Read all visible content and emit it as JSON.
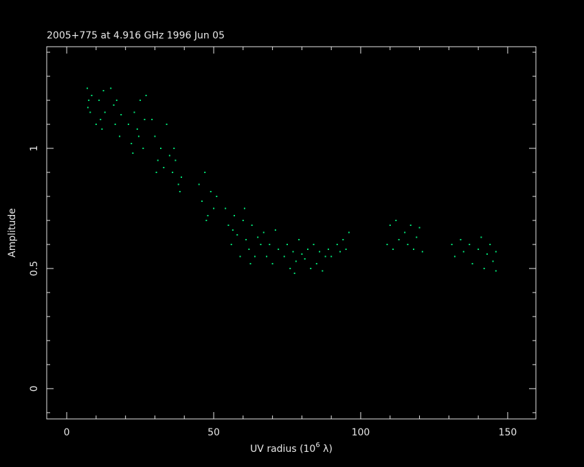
{
  "chart_data": {
    "type": "scatter",
    "title": "2005+775 at 4.916 GHz 1996 Jun 05",
    "xlabel": "UV radius  (10",
    "xlabel_exponent": "6",
    "xlabel_unit": " λ)",
    "ylabel": "Amplitude",
    "xlim": [
      -6.8,
      159.6
    ],
    "ylim": [
      -0.126,
      1.423
    ],
    "xticks": [
      0,
      50,
      100,
      150
    ],
    "yticks": [
      0,
      0.5,
      1
    ],
    "xminorticks": [
      10,
      20,
      30,
      40,
      60,
      70,
      80,
      90,
      110,
      120,
      130,
      140
    ],
    "yminorticks": [
      -0.1,
      0.1,
      0.2,
      0.3,
      0.4,
      0.6,
      0.7,
      0.8,
      0.9,
      1.1,
      1.2,
      1.3,
      1.4
    ],
    "color": "#00e878",
    "x": [
      7,
      7.5,
      8,
      8.5,
      7.2,
      10,
      11,
      12,
      12.5,
      13,
      11.5,
      15,
      16,
      16.5,
      17,
      18,
      18.5,
      21,
      22,
      23,
      24,
      25,
      26,
      26.5,
      27,
      24.5,
      22.5,
      29,
      30,
      31,
      32,
      33,
      34,
      35,
      30.5,
      36,
      37,
      38,
      39,
      36.5,
      38.5,
      45,
      46,
      47,
      48,
      49,
      50,
      51,
      47.5,
      54,
      55,
      56,
      57,
      58,
      59,
      60,
      56.5,
      61,
      62,
      63,
      64,
      65,
      66,
      62.5,
      60.5,
      67,
      68,
      69,
      70,
      71,
      72,
      74,
      75,
      76,
      77,
      78,
      79,
      80,
      77.5,
      81,
      82,
      83,
      84,
      85,
      86,
      87,
      88,
      89,
      90,
      92,
      93,
      94,
      95,
      96,
      109,
      110,
      111,
      112,
      113,
      115,
      116,
      117,
      118,
      119,
      120,
      121,
      131,
      132,
      134,
      135,
      137,
      138,
      140,
      141,
      142,
      143,
      144,
      145,
      146,
      146
    ],
    "y": [
      1.25,
      1.2,
      1.15,
      1.22,
      1.17,
      1.1,
      1.2,
      1.08,
      1.24,
      1.15,
      1.12,
      1.25,
      1.18,
      1.1,
      1.2,
      1.05,
      1.14,
      1.1,
      1.02,
      1.15,
      1.08,
      1.2,
      1.0,
      1.12,
      1.22,
      1.05,
      0.98,
      1.12,
      1.05,
      0.95,
      1.0,
      0.92,
      1.1,
      0.97,
      0.9,
      0.9,
      0.95,
      0.85,
      0.88,
      1.0,
      0.82,
      0.85,
      0.78,
      0.9,
      0.72,
      0.82,
      0.75,
      0.8,
      0.7,
      0.75,
      0.68,
      0.6,
      0.72,
      0.64,
      0.55,
      0.7,
      0.66,
      0.62,
      0.58,
      0.68,
      0.55,
      0.63,
      0.6,
      0.52,
      0.75,
      0.65,
      0.55,
      0.6,
      0.52,
      0.66,
      0.58,
      0.55,
      0.6,
      0.5,
      0.57,
      0.53,
      0.62,
      0.56,
      0.48,
      0.54,
      0.58,
      0.5,
      0.6,
      0.52,
      0.57,
      0.49,
      0.55,
      0.58,
      0.55,
      0.6,
      0.57,
      0.62,
      0.58,
      0.65,
      0.6,
      0.68,
      0.58,
      0.7,
      0.62,
      0.65,
      0.6,
      0.68,
      0.58,
      0.63,
      0.67,
      0.57,
      0.6,
      0.55,
      0.62,
      0.57,
      0.6,
      0.52,
      0.58,
      0.63,
      0.5,
      0.56,
      0.6,
      0.53,
      0.57,
      0.49
    ]
  }
}
